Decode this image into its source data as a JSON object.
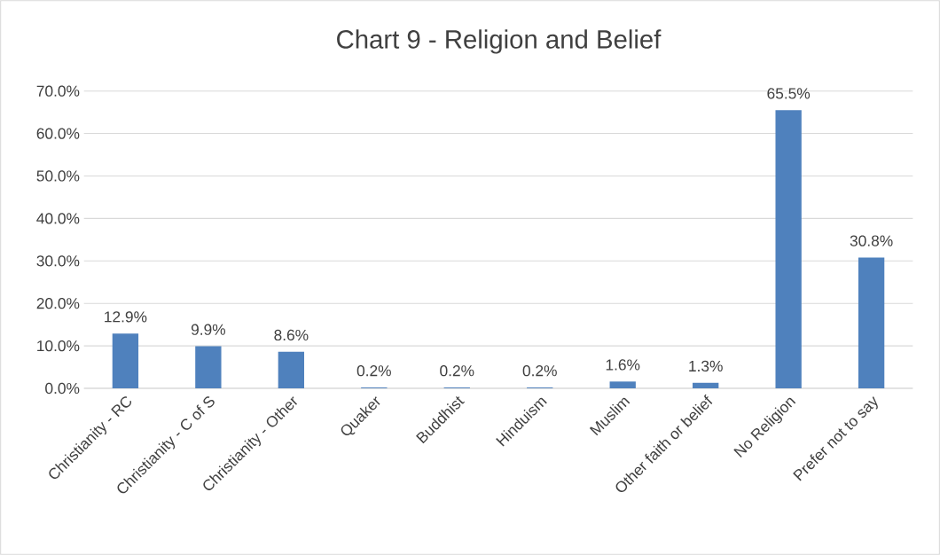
{
  "chart_data": {
    "type": "bar",
    "title": "Chart 9 - Religion and Belief",
    "categories": [
      "Christianity - RC",
      "Christianity - C of S",
      "Christianity - Other",
      "Quaker",
      "Buddhist",
      "Hinduism",
      "Muslim",
      "Other faith or belief",
      "No Religion",
      "Prefer not to say"
    ],
    "values": [
      12.9,
      9.9,
      8.6,
      0.2,
      0.2,
      0.2,
      1.6,
      1.3,
      65.5,
      30.8
    ],
    "value_labels": [
      "12.9%",
      "9.9%",
      "8.6%",
      "0.2%",
      "0.2%",
      "0.2%",
      "1.6%",
      "1.3%",
      "65.5%",
      "30.8%"
    ],
    "color": "#4f81bd",
    "ylim": [
      0,
      70
    ],
    "yticks": [
      {
        "value": 0,
        "label": "0.0%"
      },
      {
        "value": 10,
        "label": "10.0%"
      },
      {
        "value": 20,
        "label": "20.0%"
      },
      {
        "value": 30,
        "label": "30.0%"
      },
      {
        "value": 40,
        "label": "40.0%"
      },
      {
        "value": 50,
        "label": "50.0%"
      },
      {
        "value": 60,
        "label": "60.0%"
      },
      {
        "value": 70,
        "label": "70.0%"
      }
    ],
    "grid": "y"
  }
}
